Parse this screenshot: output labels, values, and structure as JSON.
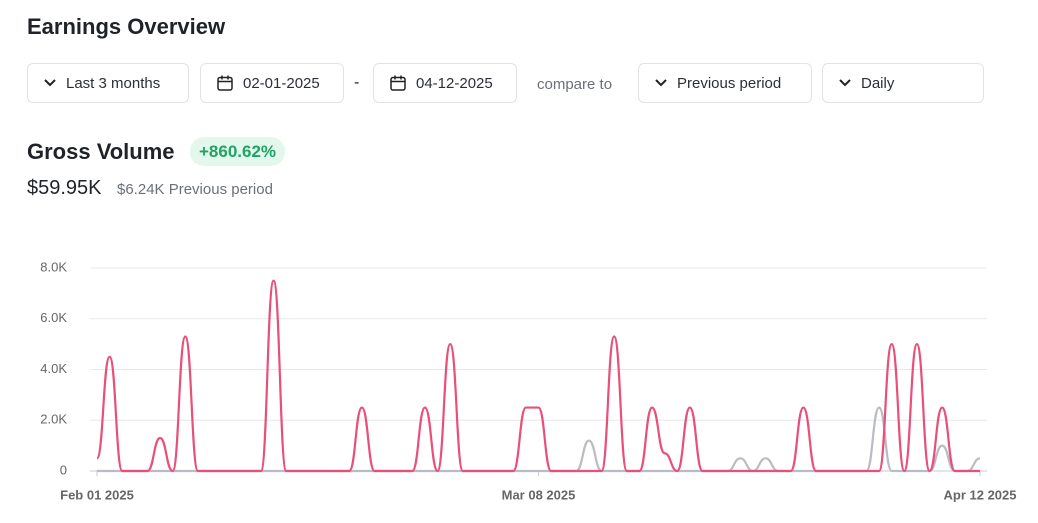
{
  "header": {
    "title": "Earnings Overview",
    "range": "Last 3 months",
    "start_date": "02-01-2025",
    "separator": "-",
    "end_date": "04-12-2025",
    "compare_label": "compare to",
    "compare": "Previous period",
    "interval": "Daily"
  },
  "metric": {
    "title": "Gross Volume",
    "change": "+860.62%",
    "value": "$59.95K",
    "previous": "$6.24K Previous period"
  },
  "chart_data": {
    "type": "line",
    "categories": [
      "Feb 01 2025",
      null,
      null,
      null,
      null,
      null,
      null,
      null,
      null,
      null,
      null,
      null,
      null,
      null,
      null,
      null,
      null,
      null,
      null,
      null,
      null,
      null,
      null,
      null,
      null,
      null,
      null,
      null,
      null,
      null,
      null,
      null,
      null,
      null,
      null,
      "Mar 08 2025",
      null,
      null,
      null,
      null,
      null,
      null,
      null,
      null,
      null,
      null,
      null,
      null,
      null,
      null,
      null,
      null,
      null,
      null,
      null,
      null,
      null,
      null,
      null,
      null,
      null,
      null,
      null,
      null,
      null,
      null,
      null,
      null,
      null,
      null,
      "Apr 12 2025"
    ],
    "series": [
      {
        "color": "#b9bcc2",
        "values": [
          0,
          0,
          0,
          0,
          0,
          0,
          0,
          0,
          0,
          0,
          0,
          0,
          0,
          0,
          0,
          0,
          0,
          0,
          0,
          0,
          0,
          0,
          0,
          0,
          0,
          0,
          0,
          0,
          0,
          0,
          0,
          0,
          0,
          0,
          0,
          0,
          0,
          0,
          0,
          1200,
          0,
          0,
          0,
          0,
          0,
          0,
          0,
          0,
          0,
          0,
          0,
          500,
          0,
          500,
          0,
          0,
          0,
          0,
          0,
          0,
          0,
          0,
          2500,
          0,
          0,
          0,
          0,
          1000,
          0,
          0,
          500
        ]
      },
      {
        "color": "#e8507a",
        "values": [
          500,
          4500,
          0,
          0,
          0,
          1300,
          0,
          5300,
          0,
          0,
          0,
          0,
          0,
          0,
          7500,
          0,
          0,
          0,
          0,
          0,
          0,
          2500,
          0,
          0,
          0,
          0,
          2500,
          0,
          5000,
          0,
          0,
          0,
          0,
          0,
          2500,
          2500,
          0,
          0,
          0,
          0,
          0,
          5300,
          0,
          0,
          2500,
          700,
          0,
          2500,
          0,
          0,
          0,
          0,
          0,
          0,
          0,
          0,
          2500,
          0,
          0,
          0,
          0,
          0,
          0,
          5000,
          0,
          5000,
          0,
          2500,
          0,
          0,
          0
        ]
      }
    ],
    "ylim": [
      0,
      8000
    ],
    "yticks": [
      0,
      {
        "value": 2000,
        "label": "2.0K"
      },
      {
        "value": 4000,
        "label": "4.0K"
      },
      {
        "value": 6000,
        "label": "6.0K"
      },
      {
        "value": 8000,
        "label": "8.0K"
      }
    ],
    "grid": true
  }
}
